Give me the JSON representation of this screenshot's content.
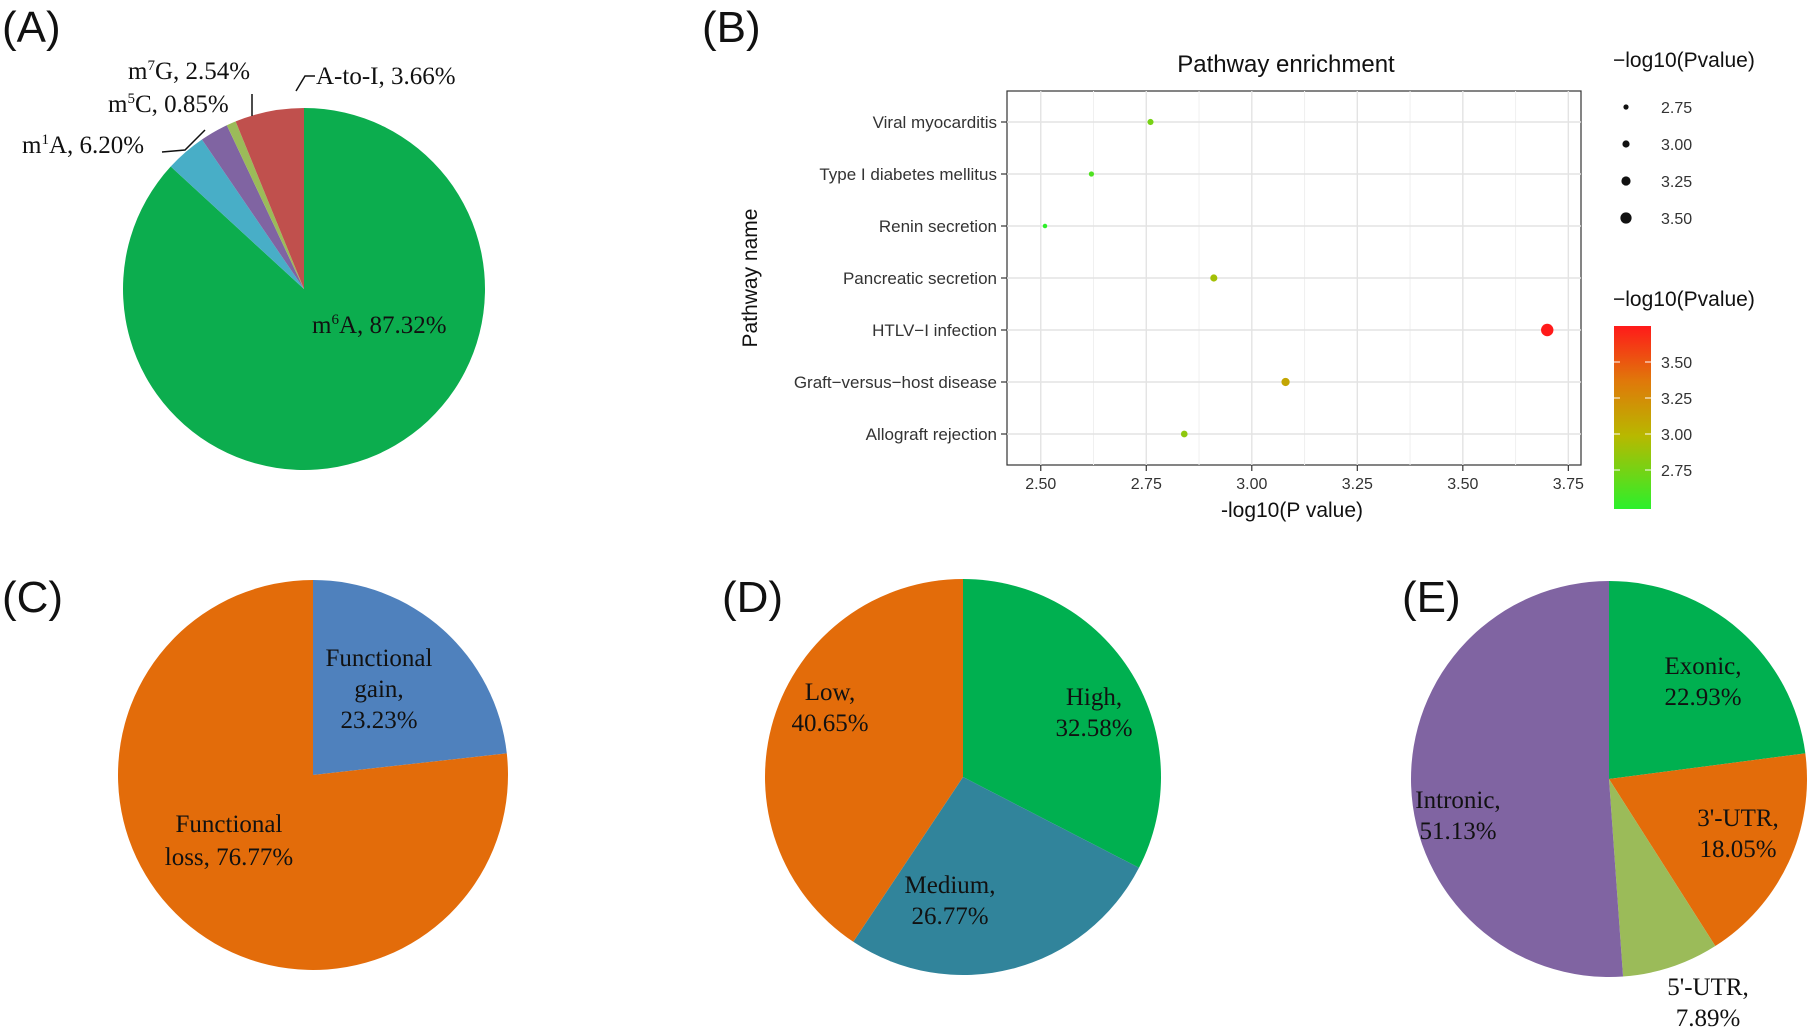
{
  "chart_data": [
    {
      "panel": "(A)",
      "type": "pie",
      "slices": [
        {
          "label": "m6A",
          "label_base": "m",
          "label_sup": "6",
          "label_rest": "A, ",
          "percent_text": "87.32%",
          "value": 87.32,
          "color": "#0cad4e"
        },
        {
          "label": "A-to-I",
          "label_base": "A-to-I, ",
          "label_sup": "",
          "label_rest": "",
          "percent_text": "3.66%",
          "value": 3.66,
          "color": "#48aec7"
        },
        {
          "label": "m7G",
          "label_base": "m",
          "label_sup": "7",
          "label_rest": "G, ",
          "percent_text": "2.54%",
          "value": 2.54,
          "color": "#8064a2"
        },
        {
          "label": "m5C",
          "label_base": "m",
          "label_sup": "5",
          "label_rest": "C, ",
          "percent_text": "0.85%",
          "value": 0.85,
          "color": "#9bbb59"
        },
        {
          "label": "m1A",
          "label_base": "m",
          "label_sup": "1",
          "label_rest": "A, ",
          "percent_text": "6.20%",
          "value": 6.2,
          "color": "#c0504d"
        }
      ]
    },
    {
      "panel": "(B)",
      "type": "scatter",
      "title": "Pathway enrichment",
      "xlabel": "-log10(P value)",
      "ylabel": "Pathway name",
      "xlim": [
        2.42,
        3.78
      ],
      "xticks": [
        "2.50",
        "2.75",
        "3.00",
        "3.25",
        "3.50",
        "3.75"
      ],
      "categories": [
        "Viral myocarditis",
        "Type I diabetes mellitus",
        "Renin secretion",
        "Pancreatic secretion",
        "HTLV−I infection",
        "Graft−versus−host disease",
        "Allograft rejection"
      ],
      "values": [
        2.76,
        2.62,
        2.51,
        2.91,
        3.7,
        3.08,
        2.84
      ],
      "grid": true,
      "size_legend": {
        "title": "−log10(Pvalue)",
        "labels": [
          "2.75",
          "3.00",
          "3.25",
          "3.50"
        ]
      },
      "color_legend": {
        "title": "−log10(Pvalue)",
        "labels": [
          "3.50",
          "3.25",
          "3.00",
          "2.75"
        ],
        "low_color": "#2bf02b",
        "high_color": "#ff1a1a"
      }
    },
    {
      "panel": "(C)",
      "type": "pie",
      "slices": [
        {
          "label": "Functional gain",
          "lines": [
            "Functional",
            "gain,",
            "23.23%"
          ],
          "value": 23.23,
          "color": "#4f81bd"
        },
        {
          "label": "Functional loss",
          "lines": [
            "Functional",
            "loss, 76.77%"
          ],
          "value": 76.77,
          "color": "#e36c0a"
        }
      ]
    },
    {
      "panel": "(D)",
      "type": "pie",
      "slices": [
        {
          "label": "High",
          "lines": [
            "High,",
            "32.58%"
          ],
          "value": 32.58,
          "color": "#00b050"
        },
        {
          "label": "Medium",
          "lines": [
            "Medium,",
            "26.77%"
          ],
          "value": 26.77,
          "color": "#31849b"
        },
        {
          "label": "Low",
          "lines": [
            "Low,",
            "40.65%"
          ],
          "value": 40.65,
          "color": "#e36c0a"
        }
      ]
    },
    {
      "panel": "(E)",
      "type": "pie",
      "slices": [
        {
          "label": "Exonic",
          "lines": [
            "Exonic,",
            "22.93%"
          ],
          "value": 22.93,
          "color": "#00b050"
        },
        {
          "label": "3'-UTR",
          "lines": [
            "3'-UTR,",
            "18.05%"
          ],
          "value": 18.05,
          "color": "#e36c0a"
        },
        {
          "label": "5'-UTR",
          "lines": [
            "5'-UTR,",
            "7.89%"
          ],
          "value": 7.89,
          "color": "#9bbb59"
        },
        {
          "label": "Intronic",
          "lines": [
            "Intronic,",
            "51.13%"
          ],
          "value": 51.13,
          "color": "#8064a2"
        }
      ]
    }
  ]
}
